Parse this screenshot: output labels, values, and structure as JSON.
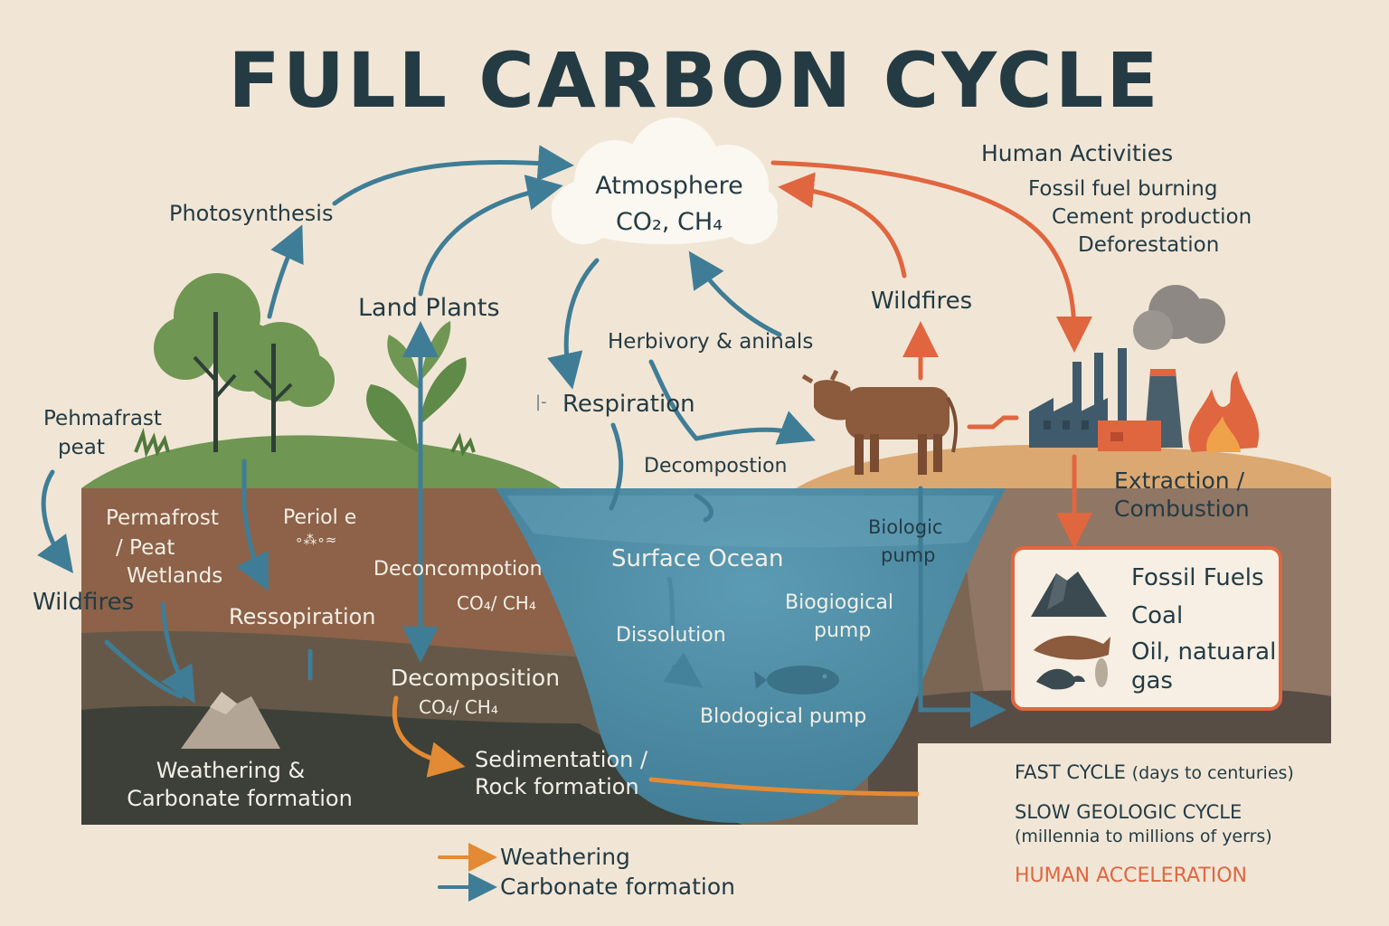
{
  "title": "FULL CARBON CYCLE",
  "colors": {
    "fast_cycle": "#3f7d96",
    "slow_cycle": "#e38a34",
    "human": "#e0663f",
    "text": "#243b44",
    "background": "#f1e6d6"
  },
  "atmosphere": {
    "label": "Atmosphere",
    "gases": "CO₂, CH₄"
  },
  "human_activities": {
    "heading": "Human Activities",
    "items": [
      "Fossil fuel burning",
      "Cement production",
      "Deforestation"
    ]
  },
  "labels": {
    "photosynthesis": "Photosynthesis",
    "land_plants": "Land Plants",
    "herbivory": "Herbivory & aninals",
    "respiration": "Respiration",
    "respiration_tick": "|-",
    "wildfires_right": "Wildfires",
    "wildfires_left": "Wildfires",
    "permafrost_peat_top_1": "Pehmafrast",
    "permafrost_peat_top_2": "peat",
    "decomposition_top": "Decompostion",
    "extraction_1": "Extraction /",
    "extraction_2": "Combustion",
    "permafrost_1": "Permafrost",
    "permafrost_2": "/  Peat",
    "permafrost_3": "Wetlands",
    "periole": "Periol e",
    "periole_marks": "∘⁂∘≈",
    "ressopiration": "Ressopiration",
    "deconcompotion": "Deconcompotion",
    "co4_ch4_a": "CO₄/ CH₄",
    "surface_ocean": "Surface Ocean",
    "biologic_pump_1": "Biologic",
    "biologic_pump_2": "pump",
    "biogiogical_1": "Biogiogical",
    "biogiogical_2": "pump",
    "dissolution": "Dissolution",
    "decomposition_bottom": "Decomposition",
    "co4_ch4_b": "CO₄/ CH₄",
    "blodogical_pump": "Blodogical pump",
    "weathering_1": "Weathering &",
    "weathering_2": "Carbonate formation",
    "sedimentation_1": "Sedimentation /",
    "sedimentation_2": "Rock formation"
  },
  "fossil_fuels": {
    "heading": "Fossil Fuels",
    "items": [
      "Coal",
      "Oil, natuaral",
      "gas"
    ]
  },
  "bottom_legend": [
    {
      "label": "Weathering",
      "color": "#e38a34"
    },
    {
      "label": "Carbonate formation",
      "color": "#3f7d96"
    }
  ],
  "legend": [
    {
      "label": "FAST CYCLE",
      "note": "(days to centuries)",
      "color": "#3f7d96"
    },
    {
      "label": "SLOW GEOLOGIC CYCLE",
      "note": "(millennia to millions of yerrs)",
      "color": "#e38a34"
    },
    {
      "label": "HUMAN ACCELERATION",
      "note": "",
      "color": "#e0663f"
    }
  ]
}
